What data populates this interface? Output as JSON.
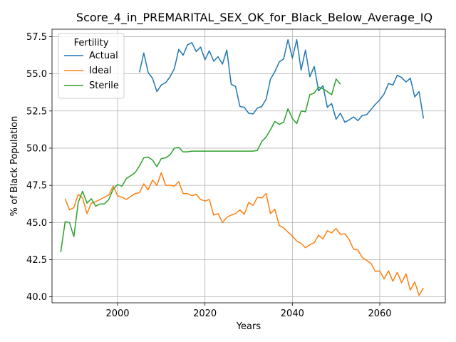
{
  "chart_data": {
    "type": "line",
    "title": "Score_4_in_PREMARITAL_SEX_OK_for_Black_Below_Average_IQ",
    "xlabel": "Years",
    "ylabel": "% of Black Population",
    "xlim": [
      1985,
      2075
    ],
    "ylim": [
      39.6,
      58.0
    ],
    "xticks": [
      2000,
      2020,
      2040,
      2060
    ],
    "yticks": [
      40.0,
      42.5,
      45.0,
      47.5,
      50.0,
      52.5,
      55.0,
      57.5
    ],
    "xtick_labels": [
      "2000",
      "2020",
      "2040",
      "2060"
    ],
    "ytick_labels": [
      "40.0",
      "42.5",
      "45.0",
      "47.5",
      "50.0",
      "52.5",
      "55.0",
      "57.5"
    ],
    "grid": true,
    "legend": {
      "title": "Fertility",
      "placement": "upper-left"
    },
    "series": [
      {
        "name": "Actual",
        "color": "#1f77b4",
        "x": [
          2005,
          2006,
          2007,
          2008,
          2009,
          2010,
          2011,
          2012,
          2013,
          2014,
          2015,
          2016,
          2017,
          2018,
          2019,
          2020,
          2021,
          2022,
          2023,
          2024,
          2025,
          2026,
          2027,
          2028,
          2029,
          2030,
          2031,
          2032,
          2033,
          2034,
          2035,
          2036,
          2037,
          2038,
          2039,
          2040,
          2041,
          2042,
          2043,
          2044,
          2045,
          2046,
          2047,
          2048,
          2049,
          2050,
          2051,
          2052,
          2053,
          2054,
          2055,
          2056,
          2057,
          2058,
          2059,
          2060,
          2061,
          2062,
          2063,
          2064,
          2065,
          2066,
          2067,
          2068,
          2069,
          2070
        ],
        "y": [
          55.1,
          56.4,
          55.1,
          54.7,
          53.8,
          54.25,
          54.4,
          54.8,
          55.35,
          56.65,
          56.25,
          56.95,
          57.1,
          56.5,
          56.8,
          55.95,
          56.55,
          55.85,
          56.15,
          55.65,
          56.6,
          54.3,
          54.15,
          52.8,
          52.75,
          52.35,
          52.3,
          52.7,
          52.8,
          53.3,
          54.65,
          55.15,
          55.8,
          56.0,
          57.3,
          56.05,
          57.3,
          55.25,
          56.6,
          54.8,
          55.5,
          53.85,
          54.2,
          52.75,
          53.0,
          51.95,
          52.35,
          51.75,
          51.9,
          52.1,
          51.85,
          52.2,
          52.25,
          52.6,
          52.95,
          53.25,
          53.65,
          54.35,
          54.25,
          54.9,
          54.75,
          54.45,
          54.7,
          53.45,
          53.8,
          52.0
        ]
      },
      {
        "name": "Ideal",
        "color": "#ff7f0e",
        "x": [
          1988,
          1989,
          1990,
          1991,
          1992,
          1993,
          1994,
          1995,
          1996,
          1997,
          1998,
          1999,
          2000,
          2001,
          2002,
          2003,
          2004,
          2005,
          2006,
          2007,
          2008,
          2009,
          2010,
          2011,
          2012,
          2013,
          2014,
          2015,
          2016,
          2017,
          2018,
          2019,
          2020,
          2021,
          2022,
          2023,
          2024,
          2025,
          2026,
          2027,
          2028,
          2029,
          2030,
          2031,
          2032,
          2033,
          2034,
          2035,
          2036,
          2037,
          2038,
          2039,
          2040,
          2041,
          2042,
          2043,
          2044,
          2045,
          2046,
          2047,
          2048,
          2049,
          2050,
          2051,
          2052,
          2053,
          2054,
          2055,
          2056,
          2057,
          2058,
          2059,
          2060,
          2061,
          2062,
          2063,
          2064,
          2065,
          2066,
          2067,
          2068,
          2069,
          2070
        ],
        "y": [
          46.6,
          45.85,
          46.0,
          46.9,
          46.65,
          45.6,
          46.3,
          46.4,
          46.55,
          46.7,
          46.85,
          47.45,
          46.8,
          46.7,
          46.55,
          46.75,
          46.95,
          47.0,
          47.6,
          47.2,
          47.85,
          47.5,
          48.35,
          47.5,
          47.5,
          47.45,
          47.75,
          46.95,
          46.95,
          46.8,
          46.9,
          46.55,
          46.45,
          46.55,
          45.5,
          45.6,
          45.0,
          45.35,
          45.5,
          45.6,
          45.85,
          45.55,
          46.35,
          46.15,
          46.7,
          46.65,
          46.95,
          45.6,
          45.9,
          44.8,
          44.65,
          44.35,
          44.1,
          43.75,
          43.6,
          43.3,
          43.5,
          43.65,
          44.15,
          43.9,
          44.45,
          44.3,
          44.6,
          44.2,
          44.25,
          43.85,
          43.2,
          43.15,
          42.65,
          42.45,
          42.25,
          41.7,
          41.75,
          41.2,
          41.75,
          41.05,
          41.65,
          40.95,
          41.55,
          40.45,
          41.0,
          40.1,
          40.6
        ]
      },
      {
        "name": "Sterile",
        "color": "#2ca02c",
        "x": [
          1987,
          1988,
          1989,
          1990,
          1991,
          1992,
          1993,
          1994,
          1995,
          1996,
          1997,
          1998,
          1999,
          2000,
          2001,
          2002,
          2003,
          2004,
          2005,
          2006,
          2007,
          2008,
          2009,
          2010,
          2011,
          2012,
          2013,
          2014,
          2015,
          2016,
          2017,
          2018,
          2019,
          2020,
          2021,
          2022,
          2023,
          2024,
          2025,
          2026,
          2027,
          2028,
          2029,
          2030,
          2031,
          2032,
          2033,
          2034,
          2035,
          2036,
          2037,
          2038,
          2039,
          2040,
          2041,
          2042,
          2043,
          2044,
          2045,
          2046,
          2047,
          2048,
          2049,
          2050,
          2051
        ],
        "y": [
          43.0,
          45.05,
          45.0,
          44.05,
          46.35,
          47.1,
          46.3,
          46.6,
          46.1,
          46.25,
          46.25,
          46.55,
          47.25,
          47.55,
          47.45,
          47.95,
          48.15,
          48.35,
          48.8,
          49.35,
          49.4,
          49.2,
          48.75,
          49.3,
          49.35,
          49.55,
          50.0,
          50.05,
          49.75,
          49.75,
          49.8,
          49.8,
          49.8,
          49.8,
          49.8,
          49.8,
          49.8,
          49.8,
          49.8,
          49.8,
          49.8,
          49.8,
          49.8,
          49.8,
          49.8,
          49.85,
          50.45,
          50.75,
          51.25,
          51.8,
          51.6,
          51.75,
          52.65,
          52.0,
          51.65,
          52.5,
          52.45,
          53.6,
          53.7,
          54.1,
          54.0,
          53.8,
          53.6,
          54.65,
          54.3
        ]
      }
    ]
  }
}
